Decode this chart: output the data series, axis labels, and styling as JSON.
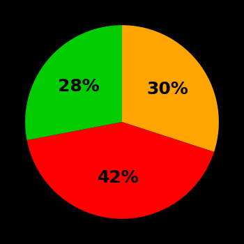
{
  "slices": [
    30,
    42,
    28
  ],
  "colors": [
    "#FFA500",
    "#FF0000",
    "#00CC00"
  ],
  "labels": [
    "30%",
    "42%",
    "28%"
  ],
  "background_color": "#000000",
  "text_color": "#000000",
  "startangle": 90,
  "figsize": [
    3.5,
    3.5
  ],
  "dpi": 100,
  "font_size": 18,
  "font_weight": "bold",
  "label_r": 0.58
}
